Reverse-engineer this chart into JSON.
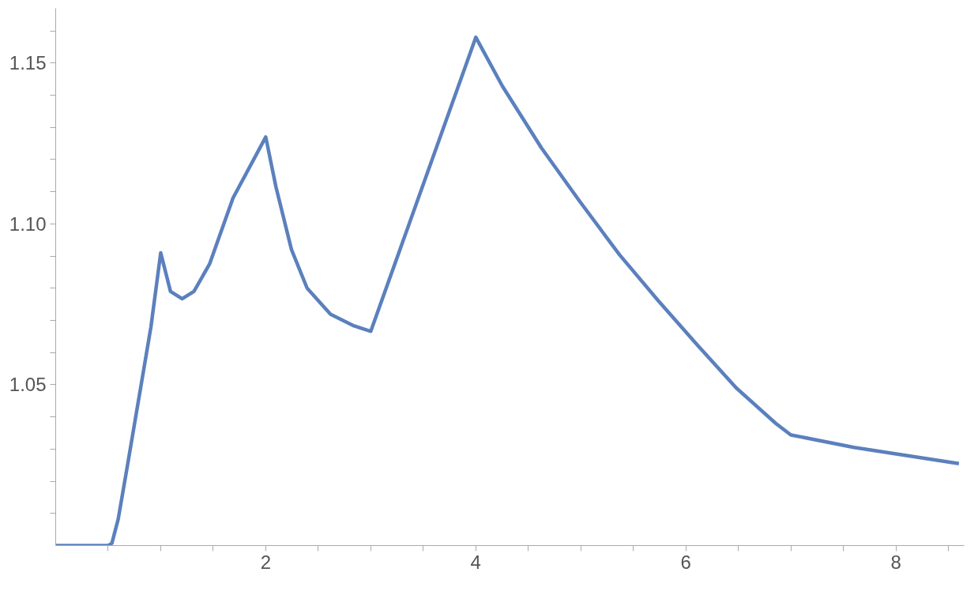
{
  "chart_data": {
    "type": "line",
    "color": "#5b80bd",
    "grid": false,
    "line_style": "solid",
    "marker": "none",
    "x": [
      0,
      0.5,
      0.535,
      0.595,
      0.684,
      0.796,
      0.907,
      1.0,
      1.093,
      1.204,
      1.316,
      1.465,
      1.688,
      2.0,
      2.097,
      2.245,
      2.394,
      2.617,
      2.84,
      3.0,
      4.0,
      4.253,
      4.625,
      4.996,
      5.368,
      5.74,
      6.11,
      6.48,
      6.855,
      7.0,
      7.6,
      8.6
    ],
    "values": [
      1.0,
      1.0,
      1.0007,
      1.0082,
      1.025,
      1.0466,
      1.068,
      1.091,
      1.079,
      1.0767,
      1.079,
      1.0875,
      1.108,
      1.127,
      1.1115,
      1.092,
      1.08,
      1.0719,
      1.0683,
      1.0666,
      1.158,
      1.1428,
      1.1236,
      1.1067,
      1.0904,
      1.076,
      1.0623,
      1.049,
      1.038,
      1.0344,
      1.0305,
      1.0255
    ],
    "xlim": [
      0,
      8.65
    ],
    "ylim": [
      1.0,
      1.167
    ],
    "xticks": [
      {
        "value": 0.5,
        "label": null
      },
      {
        "value": 1,
        "label": null
      },
      {
        "value": 1.5,
        "label": null
      },
      2,
      {
        "value": 2.5,
        "label": null
      },
      {
        "value": 3,
        "label": null
      },
      {
        "value": 3.5,
        "label": null
      },
      4,
      {
        "value": 4.5,
        "label": null
      },
      {
        "value": 5,
        "label": null
      },
      {
        "value": 5.5,
        "label": null
      },
      6,
      {
        "value": 6.5,
        "label": null
      },
      {
        "value": 7,
        "label": null
      },
      {
        "value": 7.5,
        "label": null
      },
      8,
      {
        "value": 8.5,
        "label": null
      }
    ],
    "yticks": [
      {
        "value": 1.01,
        "label": null
      },
      {
        "value": 1.02,
        "label": null
      },
      {
        "value": 1.03,
        "label": null
      },
      {
        "value": 1.04,
        "label": null
      },
      {
        "value": 1.05,
        "label": "1.05"
      },
      {
        "value": 1.06,
        "label": null
      },
      {
        "value": 1.07,
        "label": null
      },
      {
        "value": 1.08,
        "label": null
      },
      {
        "value": 1.09,
        "label": null
      },
      {
        "value": 1.1,
        "label": "1.10"
      },
      {
        "value": 1.11,
        "label": null
      },
      {
        "value": 1.12,
        "label": null
      },
      {
        "value": 1.13,
        "label": null
      },
      {
        "value": 1.14,
        "label": null
      },
      {
        "value": 1.15,
        "label": "1.15"
      },
      {
        "value": 1.16,
        "label": null
      }
    ]
  }
}
